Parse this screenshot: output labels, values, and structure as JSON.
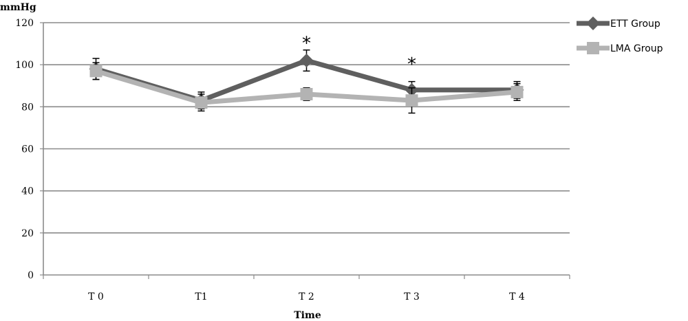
{
  "chart_data": {
    "type": "line",
    "title": "",
    "ylabel": "mmHg",
    "xlabel": "Time",
    "categories": [
      "T 0",
      "T1",
      "T 2",
      "T 3",
      "T 4"
    ],
    "ylim": [
      0,
      120
    ],
    "yticks": [
      0,
      20,
      40,
      60,
      80,
      100,
      120
    ],
    "grid": true,
    "legend_position": "top-right",
    "series": [
      {
        "name": "ETT Group",
        "values": [
          98,
          83,
          102,
          88,
          88
        ],
        "errors": [
          5,
          4,
          5,
          4,
          4
        ],
        "color": "#5f5f5f",
        "marker": "diamond"
      },
      {
        "name": "LMA Group",
        "values": [
          97,
          82,
          86,
          83,
          87
        ],
        "errors": [
          4,
          4,
          3,
          6,
          4
        ],
        "color": "#b3b3b3",
        "marker": "square"
      }
    ],
    "annotations": [
      {
        "category": "T 2",
        "y": 112,
        "text": "*"
      },
      {
        "category": "T 3",
        "y": 102,
        "text": "*"
      }
    ]
  }
}
